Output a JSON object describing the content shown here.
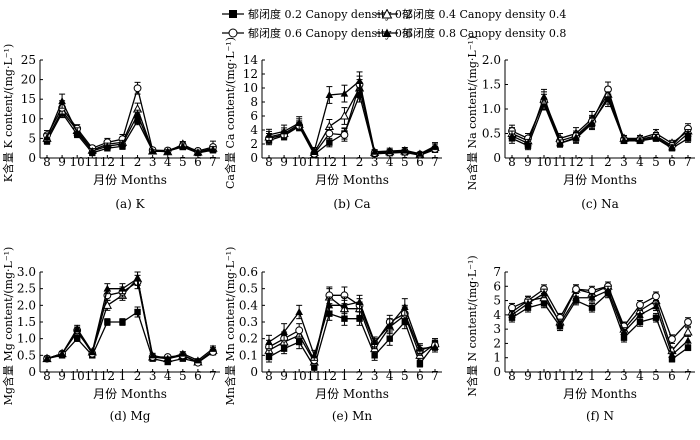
{
  "legend": [
    {
      "label": "郁闭度 0.2 Canopy density 0.2",
      "marker": "filled-square"
    },
    {
      "label": "郁闭度 0.4 Canopy density 0.4",
      "marker": "open-triangle"
    },
    {
      "label": "郁闭度 0.6 Canopy density 0.6",
      "marker": "open-circle"
    },
    {
      "label": "郁闭度 0.8 Canopy density 0.8",
      "marker": "filled-triangle"
    }
  ],
  "chart_data": [
    {
      "type": "line",
      "panel_label": "(a) K",
      "ylabel": "K含量 K content/(mg·L⁻¹)",
      "xlabel": "月份 Months",
      "categories": [
        "8",
        "9",
        "10",
        "11",
        "12",
        "1",
        "2",
        "3",
        "4",
        "5",
        "6",
        "7"
      ],
      "ylim": [
        0,
        25
      ],
      "yticks": [
        "0",
        "5",
        "10",
        "15",
        "20",
        "25"
      ],
      "ytick_values": [
        0,
        5,
        10,
        15,
        20,
        25
      ],
      "series": [
        {
          "name": "郁闭度 0.2 Canopy density 0.2",
          "values": [
            4.3,
            11.5,
            6.0,
            1.3,
            2.5,
            3.0,
            9.5,
            1.8,
            1.8,
            2.8,
            1.3,
            2.0
          ],
          "errors": [
            0.8,
            1.2,
            0.8,
            0.5,
            0.7,
            0.8,
            1.0,
            0.4,
            0.4,
            0.6,
            0.5,
            0.6
          ]
        },
        {
          "name": "郁闭度 0.4 Canopy density 0.4",
          "values": [
            5.0,
            12.0,
            7.0,
            2.0,
            3.5,
            4.0,
            12.5,
            1.8,
            1.6,
            3.5,
            1.5,
            2.5
          ],
          "errors": [
            1.0,
            1.5,
            1.0,
            0.6,
            0.8,
            1.0,
            1.5,
            0.5,
            0.5,
            0.7,
            0.5,
            0.8
          ]
        },
        {
          "name": "郁闭度 0.6 Canopy density 0.6",
          "values": [
            5.8,
            12.8,
            7.5,
            2.5,
            4.0,
            4.8,
            17.8,
            2.0,
            1.9,
            3.2,
            1.8,
            2.8
          ],
          "errors": [
            1.2,
            1.8,
            1.0,
            0.7,
            1.0,
            1.2,
            1.5,
            0.5,
            0.5,
            0.8,
            0.6,
            1.5
          ]
        },
        {
          "name": "郁闭度 0.8 Canopy density 0.8",
          "values": [
            5.2,
            14.5,
            6.5,
            1.8,
            3.0,
            3.6,
            11.0,
            1.7,
            1.7,
            3.0,
            1.5,
            2.2
          ],
          "errors": [
            1.0,
            1.8,
            1.2,
            0.6,
            0.8,
            0.9,
            1.2,
            0.4,
            0.4,
            0.6,
            0.5,
            0.7
          ]
        }
      ]
    },
    {
      "type": "line",
      "panel_label": "(b) Ca",
      "ylabel": "Ca含量 Ca content/(mg·L⁻¹)",
      "xlabel": "月份 Months",
      "categories": [
        "8",
        "9",
        "10",
        "11",
        "12",
        "1",
        "2",
        "3",
        "4",
        "5",
        "6",
        "7"
      ],
      "ylim": [
        0,
        14
      ],
      "yticks": [
        "0",
        "2",
        "4",
        "6",
        "8",
        "10",
        "12",
        "14"
      ],
      "ytick_values": [
        0,
        2,
        4,
        6,
        8,
        10,
        12,
        14
      ],
      "series": [
        {
          "name": "郁闭度 0.2 Canopy density 0.2",
          "values": [
            2.5,
            3.2,
            4.5,
            0.5,
            2.2,
            3.5,
            9.0,
            0.6,
            0.7,
            0.8,
            0.4,
            1.2
          ],
          "errors": [
            0.6,
            0.6,
            0.6,
            0.3,
            0.6,
            0.8,
            1.0,
            0.2,
            0.3,
            0.3,
            0.2,
            0.4
          ]
        },
        {
          "name": "郁闭度 0.4 Canopy density 0.4",
          "values": [
            3.0,
            3.5,
            4.8,
            0.8,
            4.5,
            6.0,
            10.0,
            0.8,
            0.9,
            1.0,
            0.5,
            1.5
          ],
          "errors": [
            0.8,
            0.8,
            0.8,
            0.4,
            1.0,
            1.2,
            1.2,
            0.3,
            0.3,
            0.3,
            0.2,
            0.5
          ]
        },
        {
          "name": "郁闭度 0.6 Canopy density 0.6",
          "values": [
            2.8,
            3.3,
            4.6,
            0.6,
            3.5,
            3.3,
            10.5,
            0.7,
            0.8,
            0.9,
            0.5,
            1.3
          ],
          "errors": [
            0.7,
            0.7,
            0.7,
            0.3,
            0.9,
            0.9,
            1.2,
            0.2,
            0.3,
            0.3,
            0.2,
            0.4
          ]
        },
        {
          "name": "郁闭度 0.8 Canopy density 0.8",
          "values": [
            3.3,
            3.8,
            5.0,
            1.0,
            9.0,
            9.2,
            11.0,
            0.9,
            1.0,
            1.1,
            0.6,
            1.7
          ],
          "errors": [
            0.8,
            0.9,
            0.9,
            0.5,
            1.2,
            1.2,
            1.3,
            0.3,
            0.4,
            0.4,
            0.2,
            0.5
          ]
        }
      ]
    },
    {
      "type": "line",
      "panel_label": "(c) Na",
      "ylabel": "Na含量 Na content/(mg·L⁻¹)",
      "xlabel": "月份 Months",
      "categories": [
        "8",
        "9",
        "10",
        "11",
        "12",
        "1",
        "2",
        "3",
        "4",
        "5",
        "6",
        "7"
      ],
      "ylim": [
        0,
        2.0
      ],
      "yticks": [
        "0",
        "0.5",
        "1.0",
        "1.5",
        "2.0"
      ],
      "ytick_values": [
        0,
        0.5,
        1.0,
        1.5,
        2.0
      ],
      "series": [
        {
          "name": "郁闭度 0.2 Canopy density 0.2",
          "values": [
            0.4,
            0.25,
            1.1,
            0.3,
            0.4,
            0.7,
            1.25,
            0.35,
            0.35,
            0.4,
            0.2,
            0.4
          ],
          "errors": [
            0.1,
            0.08,
            0.12,
            0.08,
            0.1,
            0.12,
            0.15,
            0.05,
            0.05,
            0.06,
            0.05,
            0.08
          ]
        },
        {
          "name": "郁闭度 0.4 Canopy density 0.4",
          "values": [
            0.5,
            0.35,
            1.2,
            0.4,
            0.5,
            0.8,
            1.3,
            0.4,
            0.4,
            0.5,
            0.3,
            0.55
          ],
          "errors": [
            0.12,
            0.1,
            0.15,
            0.1,
            0.12,
            0.15,
            0.15,
            0.06,
            0.06,
            0.08,
            0.06,
            0.1
          ]
        },
        {
          "name": "郁闭度 0.6 Canopy density 0.6",
          "values": [
            0.55,
            0.4,
            1.15,
            0.35,
            0.45,
            0.75,
            1.4,
            0.38,
            0.38,
            0.45,
            0.25,
            0.6
          ],
          "errors": [
            0.12,
            0.1,
            0.15,
            0.08,
            0.1,
            0.12,
            0.15,
            0.05,
            0.05,
            0.07,
            0.05,
            0.1
          ]
        },
        {
          "name": "郁闭度 0.8 Canopy density 0.8",
          "values": [
            0.45,
            0.3,
            1.25,
            0.3,
            0.42,
            0.72,
            1.2,
            0.36,
            0.36,
            0.42,
            0.22,
            0.5
          ],
          "errors": [
            0.1,
            0.08,
            0.15,
            0.07,
            0.1,
            0.12,
            0.15,
            0.05,
            0.05,
            0.06,
            0.05,
            0.08
          ]
        }
      ]
    },
    {
      "type": "line",
      "panel_label": "(d) Mg",
      "ylabel": "Mg含量 Mg content/(mg·L⁻¹)",
      "xlabel": "月份 Months",
      "categories": [
        "8",
        "9",
        "10",
        "11",
        "12",
        "1",
        "2",
        "3",
        "4",
        "5",
        "6",
        "7"
      ],
      "ylim": [
        0,
        3.0
      ],
      "yticks": [
        "0",
        "0.5",
        "1.0",
        "1.5",
        "2.0",
        "2.5",
        "3.0"
      ],
      "ytick_values": [
        0,
        0.5,
        1.0,
        1.5,
        2.0,
        2.5,
        3.0
      ],
      "series": [
        {
          "name": "郁闭度 0.2 Canopy density 0.2",
          "values": [
            0.4,
            0.5,
            1.0,
            0.5,
            1.5,
            1.5,
            1.8,
            0.4,
            0.3,
            0.4,
            0.3,
            0.6
          ],
          "errors": [
            0.05,
            0.06,
            0.08,
            0.06,
            0.1,
            0.1,
            0.15,
            0.05,
            0.05,
            0.05,
            0.05,
            0.08
          ]
        },
        {
          "name": "郁闭度 0.4 Canopy density 0.4",
          "values": [
            0.4,
            0.55,
            1.2,
            0.6,
            2.0,
            2.3,
            2.8,
            0.45,
            0.4,
            0.5,
            0.3,
            0.65
          ],
          "errors": [
            0.05,
            0.06,
            0.1,
            0.08,
            0.15,
            0.15,
            0.2,
            0.06,
            0.05,
            0.06,
            0.05,
            0.08
          ]
        },
        {
          "name": "郁闭度 0.6 Canopy density 0.6",
          "values": [
            0.4,
            0.55,
            1.25,
            0.55,
            2.3,
            2.4,
            2.7,
            0.45,
            0.45,
            0.5,
            0.28,
            0.6
          ],
          "errors": [
            0.05,
            0.06,
            0.1,
            0.06,
            0.15,
            0.15,
            0.2,
            0.06,
            0.05,
            0.06,
            0.05,
            0.08
          ]
        },
        {
          "name": "郁闭度 0.8 Canopy density 0.8",
          "values": [
            0.4,
            0.55,
            1.3,
            0.6,
            2.5,
            2.5,
            2.8,
            0.5,
            0.4,
            0.55,
            0.35,
            0.7
          ],
          "errors": [
            0.05,
            0.06,
            0.1,
            0.08,
            0.15,
            0.15,
            0.2,
            0.06,
            0.05,
            0.06,
            0.05,
            0.08
          ]
        }
      ]
    },
    {
      "type": "line",
      "panel_label": "(e) Mn",
      "ylabel": "Mn含量 Mn content/(mg·L⁻¹)",
      "xlabel": "月份 Months",
      "categories": [
        "8",
        "9",
        "10",
        "11",
        "12",
        "1",
        "2",
        "3",
        "4",
        "5",
        "6",
        "7"
      ],
      "ylim": [
        0,
        0.6
      ],
      "yticks": [
        "0",
        "0.1",
        "0.2",
        "0.3",
        "0.4",
        "0.5",
        "0.6"
      ],
      "ytick_values": [
        0,
        0.1,
        0.2,
        0.3,
        0.4,
        0.5,
        0.6
      ],
      "series": [
        {
          "name": "郁闭度 0.2 Canopy density 0.2",
          "values": [
            0.09,
            0.14,
            0.18,
            0.03,
            0.35,
            0.32,
            0.32,
            0.1,
            0.2,
            0.3,
            0.05,
            0.17
          ],
          "errors": [
            0.03,
            0.03,
            0.04,
            0.02,
            0.04,
            0.04,
            0.04,
            0.03,
            0.04,
            0.04,
            0.02,
            0.03
          ]
        },
        {
          "name": "郁闭度 0.4 Canopy density 0.4",
          "values": [
            0.13,
            0.18,
            0.22,
            0.06,
            0.45,
            0.38,
            0.38,
            0.14,
            0.27,
            0.34,
            0.1,
            0.17
          ],
          "errors": [
            0.04,
            0.04,
            0.04,
            0.02,
            0.05,
            0.05,
            0.04,
            0.03,
            0.04,
            0.05,
            0.03,
            0.03
          ]
        },
        {
          "name": "郁闭度 0.6 Canopy density 0.6",
          "values": [
            0.15,
            0.2,
            0.25,
            0.07,
            0.46,
            0.46,
            0.4,
            0.17,
            0.3,
            0.35,
            0.13,
            0.16
          ],
          "errors": [
            0.04,
            0.04,
            0.04,
            0.02,
            0.05,
            0.05,
            0.04,
            0.03,
            0.04,
            0.05,
            0.03,
            0.03
          ]
        },
        {
          "name": "郁闭度 0.8 Canopy density 0.8",
          "values": [
            0.18,
            0.24,
            0.36,
            0.1,
            0.4,
            0.4,
            0.42,
            0.18,
            0.28,
            0.39,
            0.14,
            0.15
          ],
          "errors": [
            0.04,
            0.05,
            0.04,
            0.03,
            0.05,
            0.05,
            0.04,
            0.03,
            0.04,
            0.05,
            0.03,
            0.03
          ]
        }
      ]
    },
    {
      "type": "line",
      "panel_label": "(f) N",
      "ylabel": "N含量 N content/(mg·L⁻¹)",
      "xlabel": "月份 Months",
      "categories": [
        "8",
        "9",
        "10",
        "11",
        "12",
        "1",
        "2",
        "3",
        "4",
        "5",
        "6",
        "7"
      ],
      "ylim": [
        0,
        7
      ],
      "yticks": [
        "0",
        "1",
        "2",
        "3",
        "4",
        "5",
        "6",
        "7"
      ],
      "ytick_values": [
        0,
        1,
        2,
        3,
        4,
        5,
        6,
        7
      ],
      "series": [
        {
          "name": "郁闭度 0.2 Canopy density 0.2",
          "values": [
            3.8,
            4.5,
            4.8,
            3.2,
            5.0,
            4.5,
            5.5,
            2.4,
            3.5,
            3.8,
            0.9,
            1.7
          ],
          "errors": [
            0.3,
            0.3,
            0.3,
            0.3,
            0.3,
            0.3,
            0.3,
            0.3,
            0.3,
            0.3,
            0.2,
            0.2
          ]
        },
        {
          "name": "郁闭度 0.4 Canopy density 0.4",
          "values": [
            4.2,
            5.0,
            5.2,
            3.5,
            5.8,
            5.5,
            6.0,
            3.0,
            4.3,
            5.0,
            1.5,
            2.8
          ],
          "errors": [
            0.3,
            0.3,
            0.3,
            0.3,
            0.3,
            0.3,
            0.3,
            0.3,
            0.3,
            0.3,
            0.2,
            0.3
          ]
        },
        {
          "name": "郁闭度 0.6 Canopy density 0.6",
          "values": [
            4.5,
            5.0,
            5.8,
            3.8,
            5.8,
            5.7,
            6.0,
            3.2,
            4.7,
            5.3,
            2.3,
            3.5
          ],
          "errors": [
            0.3,
            0.3,
            0.3,
            0.3,
            0.3,
            0.3,
            0.3,
            0.3,
            0.3,
            0.3,
            0.3,
            0.3
          ]
        },
        {
          "name": "郁闭度 0.8 Canopy density 0.8",
          "values": [
            4.0,
            4.8,
            5.5,
            3.4,
            5.2,
            5.2,
            5.7,
            2.8,
            4.0,
            4.6,
            1.2,
            2.2
          ],
          "errors": [
            0.3,
            0.3,
            0.3,
            0.3,
            0.3,
            0.3,
            0.3,
            0.3,
            0.3,
            0.3,
            0.2,
            0.3
          ]
        }
      ]
    }
  ]
}
